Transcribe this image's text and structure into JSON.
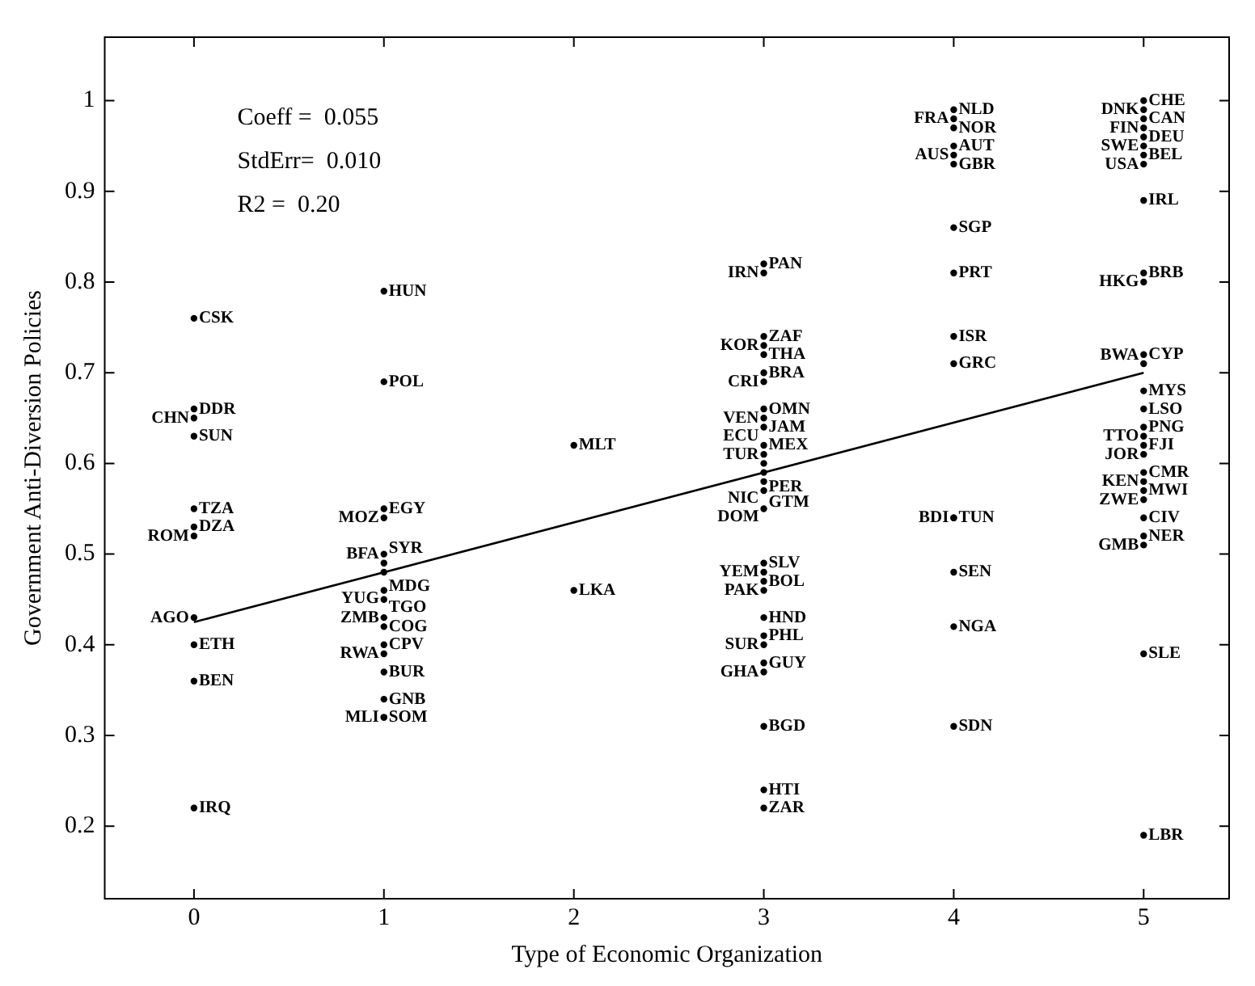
{
  "chart_data": {
    "type": "scatter",
    "xlabel": "Type of Economic Organization",
    "ylabel": "Government Anti-Diversion Policies",
    "annotations": [
      "Coeff =  0.055",
      "StdErr=  0.010",
      "R2 =  0.20"
    ],
    "xlim": [
      -0.47,
      5.45
    ],
    "ylim": [
      0.12,
      1.07
    ],
    "xticks": [
      0,
      1,
      2,
      3,
      4,
      5
    ],
    "yticks": [
      0.2,
      0.3,
      0.4,
      0.5,
      0.6,
      0.7,
      0.8,
      0.9,
      1
    ],
    "grid": false,
    "legend": false,
    "series": [
      {
        "type": "scatter",
        "marker": "circle",
        "color": "#000000",
        "x": [
          0,
          0,
          0,
          0,
          0,
          0,
          0,
          0,
          0,
          0,
          0,
          1,
          1,
          1,
          1,
          1,
          1,
          1,
          1,
          1,
          1,
          1,
          1,
          1,
          1,
          1,
          1,
          1,
          2,
          2,
          3,
          3,
          3,
          3,
          3,
          3,
          3,
          3,
          3,
          3,
          3,
          3,
          3,
          3,
          3,
          3,
          3,
          3,
          3,
          3,
          3,
          3,
          3,
          3,
          3,
          3,
          3,
          3,
          3,
          4,
          4,
          4,
          4,
          4,
          4,
          4,
          4,
          4,
          4,
          4,
          4,
          4,
          4,
          4,
          5,
          5,
          5,
          5,
          5,
          5,
          5,
          5,
          5,
          5,
          5,
          5,
          5,
          5,
          5,
          5,
          5,
          5,
          5,
          5,
          5,
          5,
          5,
          5,
          5,
          5,
          5,
          5
        ],
        "values": [
          0.76,
          0.66,
          0.65,
          0.63,
          0.55,
          0.53,
          0.52,
          0.43,
          0.4,
          0.36,
          0.22,
          0.79,
          0.69,
          0.55,
          0.54,
          0.5,
          0.49,
          0.48,
          0.46,
          0.45,
          0.43,
          0.42,
          0.4,
          0.39,
          0.37,
          0.34,
          0.32,
          0.32,
          0.62,
          0.46,
          0.82,
          0.81,
          0.74,
          0.73,
          0.72,
          0.7,
          0.69,
          0.66,
          0.65,
          0.64,
          0.62,
          0.61,
          0.6,
          0.59,
          0.58,
          0.57,
          0.55,
          0.49,
          0.48,
          0.47,
          0.46,
          0.43,
          0.41,
          0.4,
          0.38,
          0.37,
          0.31,
          0.24,
          0.22,
          0.99,
          0.98,
          0.97,
          0.95,
          0.94,
          0.93,
          0.86,
          0.81,
          0.74,
          0.71,
          0.54,
          0.54,
          0.48,
          0.42,
          0.31,
          1.0,
          0.99,
          0.98,
          0.97,
          0.96,
          0.95,
          0.94,
          0.93,
          0.89,
          0.81,
          0.8,
          0.72,
          0.71,
          0.68,
          0.66,
          0.64,
          0.63,
          0.62,
          0.61,
          0.59,
          0.58,
          0.57,
          0.56,
          0.54,
          0.52,
          0.51,
          0.39,
          0.19
        ],
        "value_labels": [
          "CSK",
          "DDR",
          "CHN",
          "SUN",
          "TZA",
          "DZA",
          "ROM",
          "AGO",
          "ETH",
          "BEN",
          "IRQ",
          "HUN",
          "POL",
          "EGY",
          "MOZ",
          "BFA",
          "SYR",
          "MDG",
          "YUG",
          "TGO",
          "ZMB",
          "COG",
          "CPV",
          "RWA",
          "BUR",
          "GNB",
          "SOM",
          "MLI",
          "MLT",
          "LKA",
          "PAN",
          "IRN",
          "ZAF",
          "KOR",
          "THA",
          "BRA",
          "CRI",
          "OMN",
          "VEN",
          "JAM",
          "MEX",
          "TUR",
          "ECU",
          "PER",
          "GTM",
          "NIC",
          "DOM",
          "SLV",
          "YEM",
          "BOL",
          "PAK",
          "HND",
          "PHL",
          "SUR",
          "GUY",
          "GHA",
          "BGD",
          "HTI",
          "ZAR",
          "NLD",
          "FRA",
          "NOR",
          "AUT",
          "AUS",
          "GBR",
          "SGP",
          "PRT",
          "ISR",
          "GRC",
          "TUN",
          "BDI",
          "SEN",
          "NGA",
          "SDN",
          "CHE",
          "DNK",
          "CAN",
          "FIN",
          "DEU",
          "SWE",
          "BEL",
          "USA",
          "IRL",
          "BRB",
          "HKG",
          "CYP",
          "BWA",
          "MYS",
          "LSO",
          "PNG",
          "TTO",
          "FJI",
          "JOR",
          "CMR",
          "KEN",
          "MWI",
          "ZWE",
          "CIV",
          "NER",
          "GMB",
          "SLE",
          "LBR"
        ]
      },
      {
        "type": "line",
        "marker": "none",
        "color": "#000000",
        "line_style": "solid",
        "x": [
          0,
          5
        ],
        "values": [
          0.425,
          0.7
        ]
      }
    ]
  }
}
